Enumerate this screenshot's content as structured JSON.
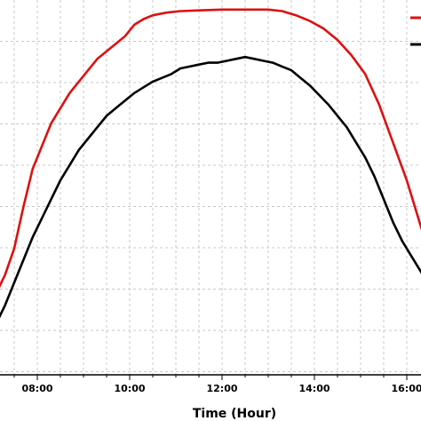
{
  "chart_data": {
    "type": "line",
    "xlabel": "Time (Hour)",
    "x_ticks": [
      "08:00",
      "10:00",
      "12:00",
      "14:00",
      "16:00"
    ],
    "x_tick_values": [
      8,
      10,
      12,
      14,
      16
    ],
    "xlim": [
      7.1,
      16.6
    ],
    "ylim": [
      0,
      1
    ],
    "grid": true,
    "legend": "top-right",
    "series": [
      {
        "color": "#dd1111",
        "x": [
          7.1,
          7.3,
          7.5,
          7.7,
          7.9,
          8.1,
          8.3,
          8.5,
          8.7,
          8.9,
          9.1,
          9.3,
          9.5,
          9.7,
          9.9,
          10.1,
          10.3,
          10.5,
          10.8,
          11.1,
          11.5,
          12.0,
          12.5,
          13.0,
          13.3,
          13.6,
          13.9,
          14.2,
          14.5,
          14.8,
          15.1,
          15.4,
          15.7,
          16.0,
          16.3,
          16.6
        ],
        "y": [
          0.22,
          0.27,
          0.34,
          0.45,
          0.55,
          0.61,
          0.67,
          0.71,
          0.75,
          0.78,
          0.81,
          0.84,
          0.86,
          0.88,
          0.9,
          0.93,
          0.945,
          0.955,
          0.962,
          0.966,
          0.968,
          0.97,
          0.97,
          0.97,
          0.966,
          0.955,
          0.94,
          0.92,
          0.89,
          0.85,
          0.8,
          0.72,
          0.62,
          0.52,
          0.4,
          0.3
        ]
      },
      {
        "color": "#000000",
        "x": [
          7.1,
          7.3,
          7.5,
          7.7,
          7.9,
          8.1,
          8.3,
          8.5,
          8.7,
          8.9,
          9.1,
          9.3,
          9.5,
          9.7,
          9.9,
          10.1,
          10.3,
          10.5,
          10.7,
          10.9,
          11.1,
          11.3,
          11.5,
          11.7,
          11.9,
          12.1,
          12.3,
          12.5,
          12.7,
          12.9,
          13.1,
          13.3,
          13.5,
          13.7,
          13.9,
          14.1,
          14.3,
          14.5,
          14.7,
          14.9,
          15.1,
          15.3,
          15.5,
          15.7,
          15.9,
          16.1,
          16.3,
          16.6
        ],
        "y": [
          0.14,
          0.19,
          0.25,
          0.31,
          0.37,
          0.42,
          0.47,
          0.52,
          0.56,
          0.6,
          0.63,
          0.66,
          0.69,
          0.71,
          0.73,
          0.75,
          0.765,
          0.78,
          0.79,
          0.8,
          0.815,
          0.82,
          0.825,
          0.83,
          0.83,
          0.835,
          0.84,
          0.845,
          0.84,
          0.835,
          0.83,
          0.82,
          0.81,
          0.79,
          0.77,
          0.745,
          0.72,
          0.69,
          0.66,
          0.62,
          0.58,
          0.53,
          0.47,
          0.41,
          0.36,
          0.32,
          0.28,
          0.22
        ]
      }
    ]
  }
}
